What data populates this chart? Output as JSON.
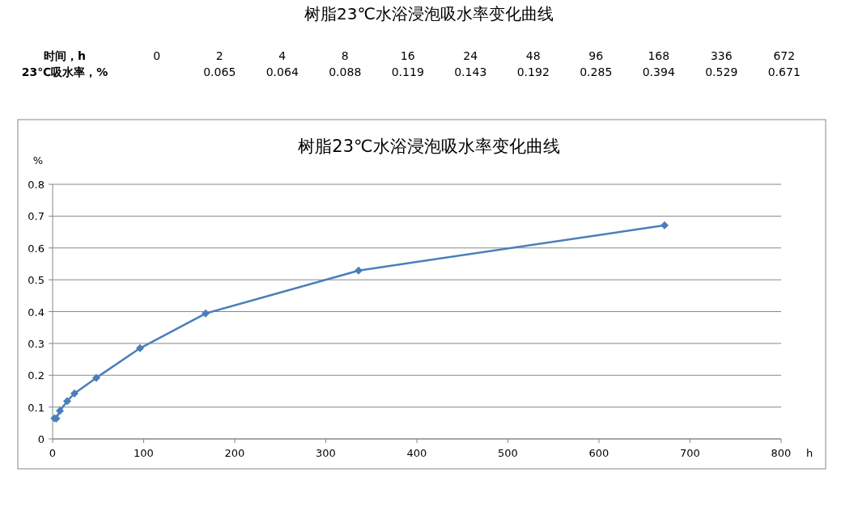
{
  "chart_data": [
    {
      "type": "other",
      "title": "树脂23℃水浴浸泡吸水率变化曲线",
      "annotations": [
        "时间，h",
        "23℃吸水率，%"
      ],
      "categories": [
        "0",
        "2",
        "4",
        "8",
        "16",
        "24",
        "48",
        "96",
        "168",
        "336",
        "672"
      ],
      "values": [
        null,
        0.065,
        0.064,
        0.088,
        0.119,
        0.143,
        0.192,
        0.285,
        0.394,
        0.529,
        0.671
      ],
      "data_labels": true
    },
    {
      "type": "line",
      "title": "树脂23℃水浴浸泡吸水率变化曲线",
      "xlabel": "h",
      "ylabel": "%",
      "x": [
        2,
        4,
        8,
        16,
        24,
        48,
        96,
        168,
        336,
        672
      ],
      "series": [
        {
          "color": "#4a7ebb",
          "values": [
            0.065,
            0.064,
            0.088,
            0.119,
            0.143,
            0.192,
            0.285,
            0.394,
            0.529,
            0.671
          ]
        }
      ],
      "xlim": [
        0,
        800
      ],
      "xticks": [
        0,
        100,
        200,
        300,
        400,
        500,
        600,
        700,
        800
      ],
      "ylim": [
        0,
        0.8
      ],
      "yticks": [
        0,
        0.1,
        0.2,
        0.3,
        0.4,
        0.5,
        0.6,
        0.7,
        0.8
      ],
      "grid": "y",
      "marker": "diamond",
      "line_style": "solid"
    }
  ]
}
